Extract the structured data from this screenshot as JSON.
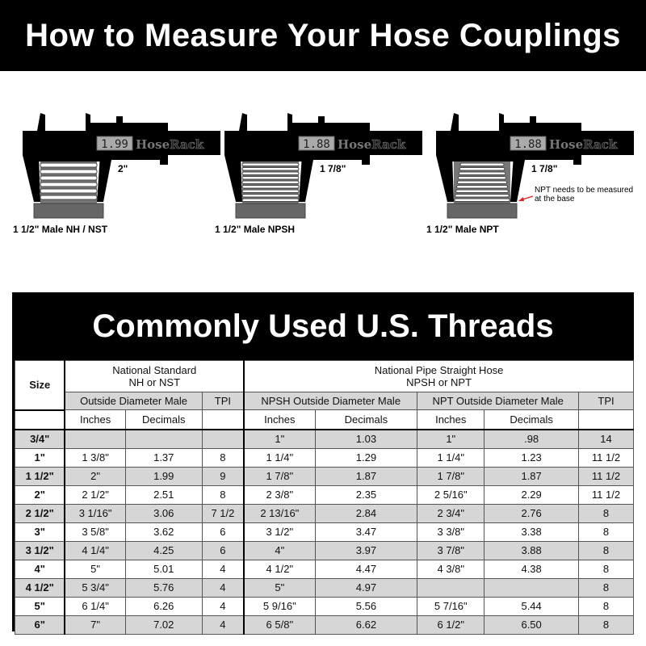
{
  "title": "How to Measure Your Hose Couplings",
  "calipers": [
    {
      "reading": "1.99",
      "brand_a": "Hose",
      "brand_b": "Rack",
      "measurement": "2\"",
      "label": "1 1/2\" Male NH / NST"
    },
    {
      "reading": "1.88",
      "brand_a": "Hose",
      "brand_b": "Rack",
      "measurement": "1 7/8\"",
      "label": "1 1/2\" Male NPSH"
    },
    {
      "reading": "1.88",
      "brand_a": "Hose",
      "brand_b": "Rack",
      "measurement": "1 7/8\"",
      "label": "1 1/2\" Male NPT",
      "note": "NPT needs to be measured at the base"
    }
  ],
  "colors": {
    "black": "#000000",
    "row_alt": "#d6d6d6",
    "arrow": "#e02020"
  },
  "table": {
    "title": "Commonly Used U.S. Threads",
    "size_header": "Size",
    "group_ns": "National Standard NH or NST",
    "group_ns_line1": "National Standard",
    "group_ns_line2": "NH or NST",
    "group_nps_line1": "National Pipe Straight Hose",
    "group_nps_line2": "NPSH or NPT",
    "sub_ns_od": "Outside Diameter Male",
    "sub_ns_tpi": "TPI",
    "sub_npsh_od": "NPSH Outside Diameter Male",
    "sub_npt_od": "NPT Outside Diameter Male",
    "sub_npt_tpi": "TPI",
    "unit_inches": "Inches",
    "unit_decimals": "Decimals",
    "rows": [
      [
        "3/4\"",
        "",
        "",
        "",
        "1\"",
        "1.03",
        "1\"",
        ".98",
        "14"
      ],
      [
        "1\"",
        "1 3/8\"",
        "1.37",
        "8",
        "1 1/4\"",
        "1.29",
        "1 1/4\"",
        "1.23",
        "11 1/2"
      ],
      [
        "1 1/2\"",
        "2\"",
        "1.99",
        "9",
        "1 7/8\"",
        "1.87",
        "1 7/8\"",
        "1.87",
        "11 1/2"
      ],
      [
        "2\"",
        "2 1/2\"",
        "2.51",
        "8",
        "2 3/8\"",
        "2.35",
        "2 5/16\"",
        "2.29",
        "11 1/2"
      ],
      [
        "2 1/2\"",
        "3 1/16\"",
        "3.06",
        "7 1/2",
        "2 13/16\"",
        "2.84",
        "2 3/4\"",
        "2.76",
        "8"
      ],
      [
        "3\"",
        "3 5/8\"",
        "3.62",
        "6",
        "3 1/2\"",
        "3.47",
        "3 3/8\"",
        "3.38",
        "8"
      ],
      [
        "3 1/2\"",
        "4 1/4\"",
        "4.25",
        "6",
        "4\"",
        "3.97",
        "3 7/8\"",
        "3.88",
        "8"
      ],
      [
        "4\"",
        "5\"",
        "5.01",
        "4",
        "4 1/2\"",
        "4.47",
        "4 3/8\"",
        "4.38",
        "8"
      ],
      [
        "4 1/2\"",
        "5 3/4\"",
        "5.76",
        "4",
        "5\"",
        "4.97",
        "",
        "",
        "8"
      ],
      [
        "5\"",
        "6 1/4\"",
        "6.26",
        "4",
        "5 9/16\"",
        "5.56",
        "5 7/16\"",
        "5.44",
        "8"
      ],
      [
        "6\"",
        "7\"",
        "7.02",
        "4",
        "6 5/8\"",
        "6.62",
        "6 1/2\"",
        "6.50",
        "8"
      ]
    ]
  }
}
